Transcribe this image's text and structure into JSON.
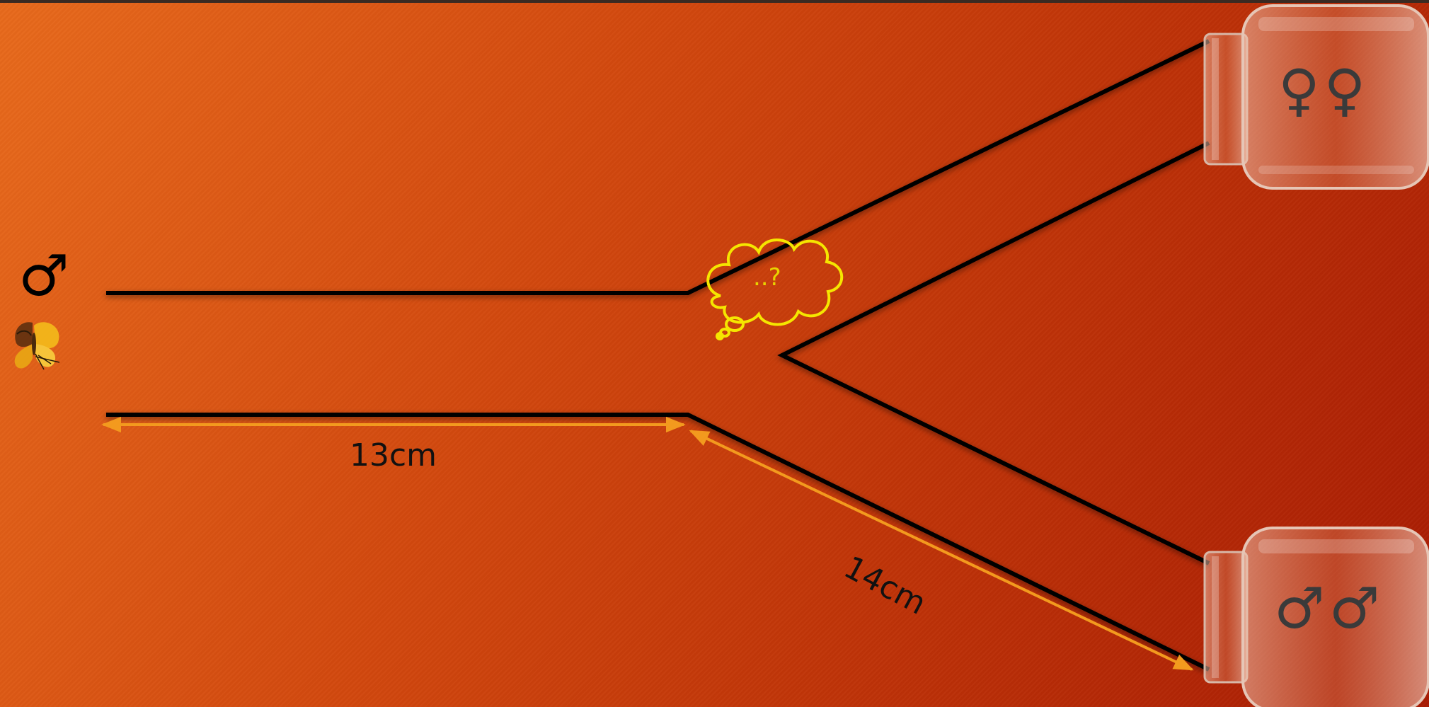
{
  "labels": {
    "male_symbol": "♂",
    "top_jar_symbols": "♀♀",
    "bottom_jar_symbols": "♂♂",
    "thought_text": "..?",
    "straight_length": "13cm",
    "branch_length": "14cm"
  },
  "colors": {
    "background_start": "#e86a1c",
    "background_end": "#a81c04",
    "wall": "#000000",
    "measure": "#f39a1e",
    "thought": "#f5e600"
  },
  "icons": [
    "male-icon",
    "butterfly-icon",
    "thought-bubble-icon",
    "jar-icon",
    "female-icon"
  ]
}
